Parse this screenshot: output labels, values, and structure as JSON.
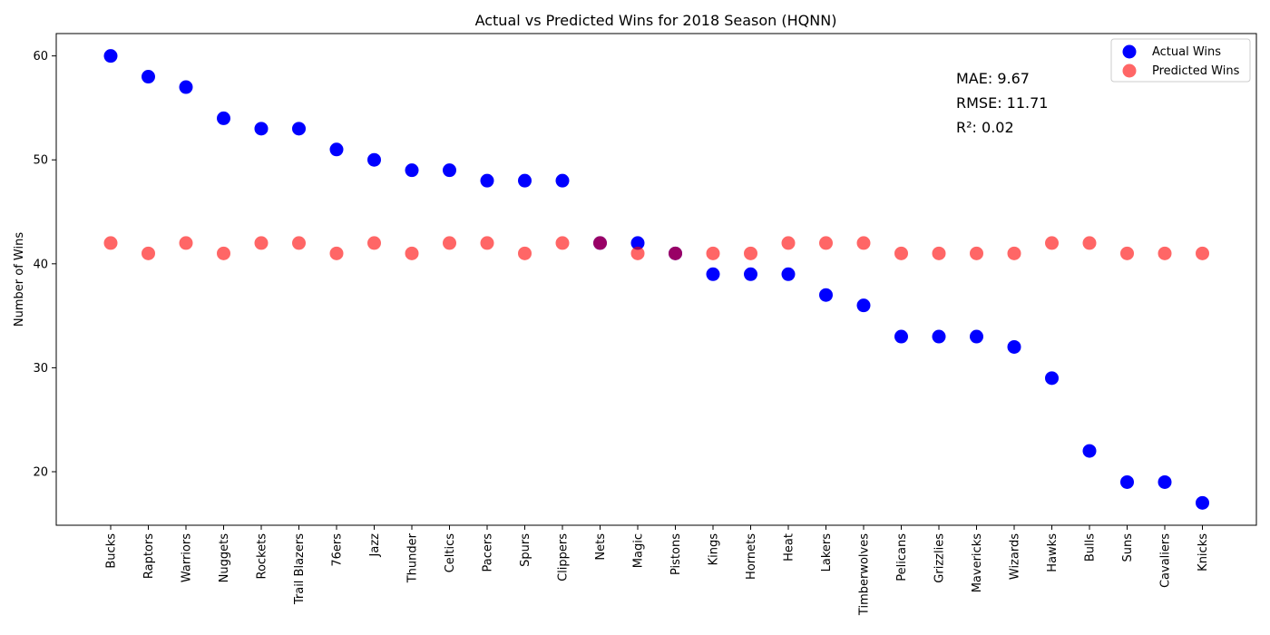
{
  "chart_data": {
    "type": "scatter",
    "title": "Actual vs Predicted Wins for 2018 Season (HQNN)",
    "xlabel": "",
    "ylabel": "Number of Wins",
    "ylim": [
      14.85,
      62.15
    ],
    "yticks": [
      20,
      30,
      40,
      50,
      60
    ],
    "grid": false,
    "legend_position": "top-right",
    "categories": [
      "Bucks",
      "Raptors",
      "Warriors",
      "Nuggets",
      "Rockets",
      "Trail Blazers",
      "76ers",
      "Jazz",
      "Thunder",
      "Celtics",
      "Pacers",
      "Spurs",
      "Clippers",
      "Nets",
      "Magic",
      "Pistons",
      "Kings",
      "Hornets",
      "Heat",
      "Lakers",
      "Timberwolves",
      "Pelicans",
      "Grizzlies",
      "Mavericks",
      "Wizards",
      "Hawks",
      "Bulls",
      "Suns",
      "Cavaliers",
      "Knicks"
    ],
    "series": [
      {
        "name": "Actual Wins",
        "color": "#0000ff",
        "opacity": 1,
        "values": [
          60,
          58,
          57,
          54,
          53,
          53,
          51,
          50,
          49,
          49,
          48,
          48,
          48,
          42,
          42,
          41,
          39,
          39,
          39,
          37,
          36,
          33,
          33,
          33,
          32,
          29,
          22,
          19,
          19,
          17
        ]
      },
      {
        "name": "Predicted Wins",
        "color": "#ff0000",
        "opacity": 0.6,
        "values": [
          42,
          41,
          42,
          41,
          42,
          42,
          41,
          42,
          41,
          42,
          42,
          41,
          42,
          42,
          41,
          41,
          41,
          41,
          42,
          42,
          42,
          41,
          41,
          41,
          41,
          42,
          42,
          41,
          41,
          41
        ]
      }
    ],
    "annotations": [
      "MAE: 9.67",
      "RMSE: 11.71",
      "R²: 0.02"
    ]
  }
}
